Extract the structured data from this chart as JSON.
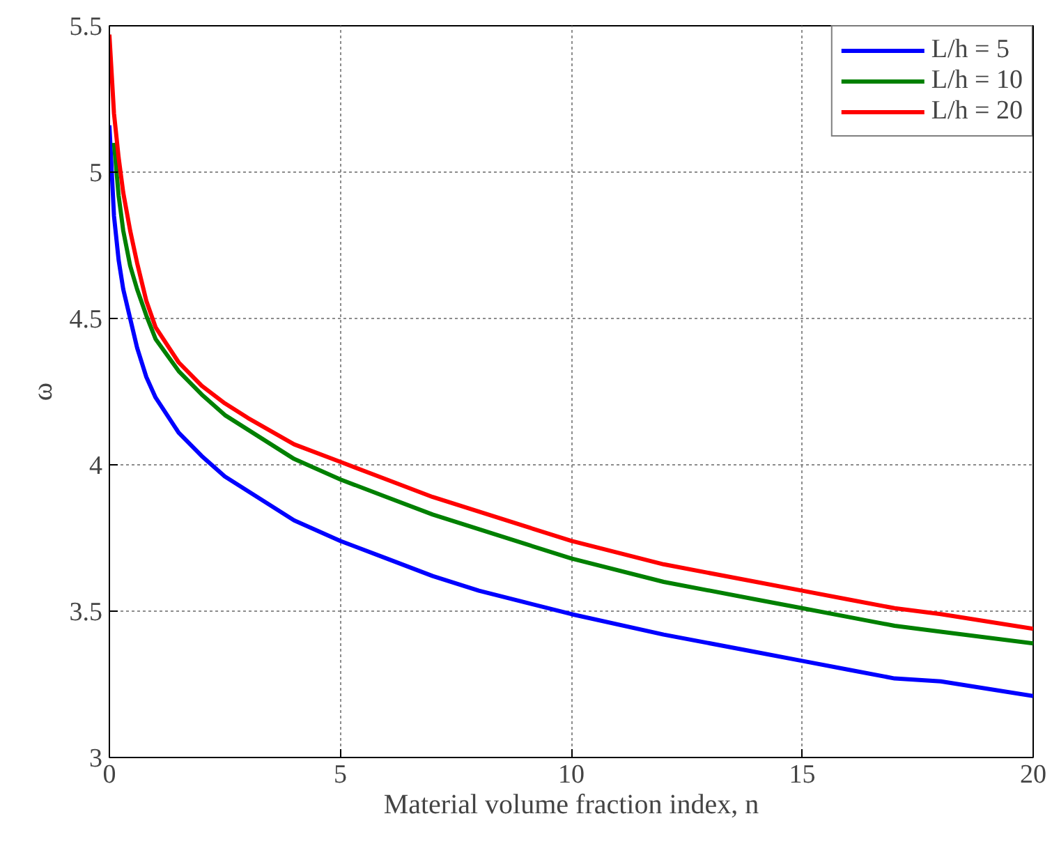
{
  "chart_data": {
    "type": "line",
    "xlabel": "Material volume fraction index, n",
    "ylabel": "ω",
    "xlim": [
      0,
      20
    ],
    "ylim": [
      3,
      5.5
    ],
    "xticks": [
      0,
      5,
      10,
      15,
      20
    ],
    "yticks": [
      3,
      3.5,
      4,
      4.5,
      5,
      5.5
    ],
    "grid": true,
    "legend": "top right",
    "line_style": "solid",
    "marker": "none",
    "x": [
      0,
      0.1,
      0.2,
      0.3,
      0.45,
      0.6,
      0.8,
      1,
      1.5,
      2,
      2.5,
      3,
      4,
      5,
      6,
      7,
      8,
      9,
      10,
      12,
      14,
      15,
      16,
      17,
      18,
      20
    ],
    "series": [
      {
        "name": "L/h = 5",
        "color": "#0000ff",
        "values": [
          5.16,
          4.85,
          4.7,
          4.6,
          4.5,
          4.4,
          4.3,
          4.23,
          4.11,
          4.03,
          3.96,
          3.91,
          3.81,
          3.74,
          3.68,
          3.62,
          3.57,
          3.53,
          3.49,
          3.42,
          3.36,
          3.33,
          3.3,
          3.27,
          3.26,
          3.21
        ]
      },
      {
        "name": "L/h = 10",
        "color": "#008000",
        "values": [
          null,
          5.1,
          4.92,
          4.8,
          4.68,
          4.6,
          4.51,
          4.43,
          4.32,
          4.24,
          4.17,
          4.12,
          4.02,
          3.95,
          3.89,
          3.83,
          3.78,
          3.73,
          3.68,
          3.6,
          3.54,
          3.51,
          3.48,
          3.45,
          3.43,
          3.39
        ]
      },
      {
        "name": "L/h = 20",
        "color": "#ff0000",
        "values": [
          5.47,
          5.2,
          5.05,
          4.93,
          4.8,
          4.69,
          4.56,
          4.47,
          4.35,
          4.27,
          4.21,
          4.16,
          4.07,
          4.01,
          3.95,
          3.89,
          3.84,
          3.79,
          3.74,
          3.66,
          3.6,
          3.57,
          3.54,
          3.51,
          3.49,
          3.44
        ]
      }
    ]
  }
}
